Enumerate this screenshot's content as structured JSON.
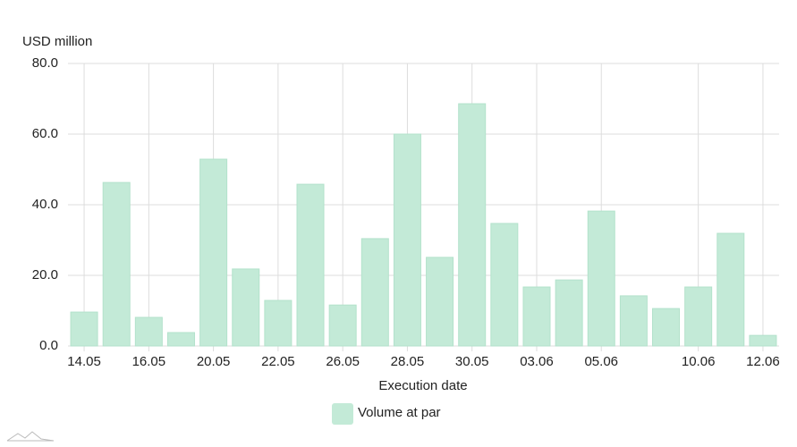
{
  "chart_data": {
    "type": "bar",
    "y_label": "USD million",
    "x_label": "Execution date",
    "categories": [
      "14.05",
      null,
      "16.05",
      null,
      "20.05",
      null,
      "22.05",
      null,
      "26.05",
      null,
      "28.05",
      null,
      "30.05",
      null,
      "03.06",
      null,
      "05.06",
      null,
      null,
      "10.06",
      null,
      "12.06"
    ],
    "series": [
      {
        "name": "Volume at par",
        "color": "#c3ead7",
        "values": [
          9.6,
          46.3,
          8.1,
          3.8,
          52.9,
          21.8,
          12.9,
          45.8,
          11.6,
          30.4,
          60.0,
          25.1,
          68.6,
          34.7,
          16.7,
          18.7,
          38.2,
          14.2,
          10.6,
          16.7,
          31.9,
          3.0
        ]
      }
    ],
    "ylim": [
      0,
      80
    ],
    "yticks": [
      {
        "value": 0,
        "label": "0.0"
      },
      {
        "value": 20,
        "label": "20.0"
      },
      {
        "value": 40,
        "label": "40.0"
      },
      {
        "value": 60,
        "label": "60.0"
      },
      {
        "value": 80,
        "label": "80.0"
      }
    ],
    "grid": true,
    "legend": "bottom"
  }
}
